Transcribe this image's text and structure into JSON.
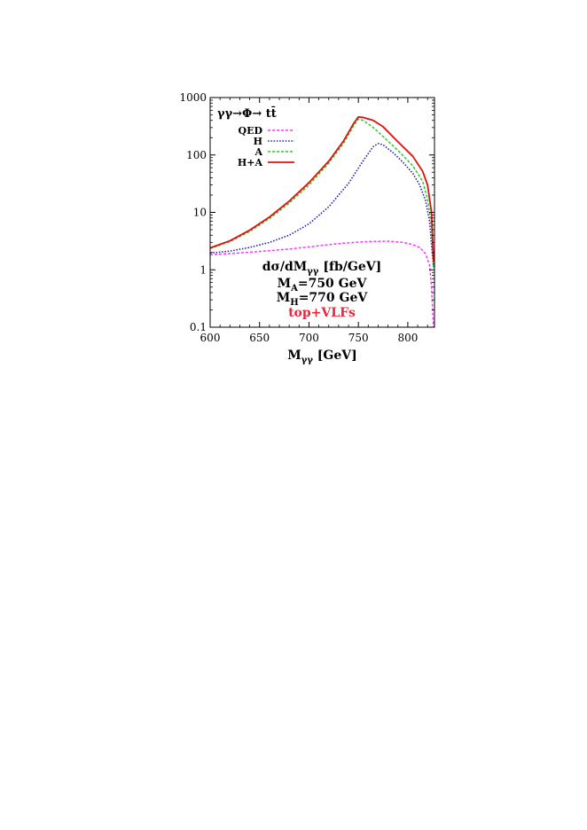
{
  "chart_data": {
    "type": "line",
    "title": "γγ→Φ→ tt̄",
    "xlabel": "M_γγ [GeV]",
    "ylabel": "",
    "xlim": [
      600,
      827
    ],
    "ylim": [
      0.1,
      1000
    ],
    "yscale": "log",
    "x_ticks": [
      "600",
      "650",
      "700",
      "750",
      "800"
    ],
    "y_ticks": [
      "0.1",
      "1",
      "10",
      "100",
      "1000"
    ],
    "legend_position": "top-left",
    "annotations": {
      "ylabel_text": "dσ/dM_γγ [fb/GeV]",
      "ma_text": "M_A=750 GeV",
      "mh_text": "M_H=770 GeV",
      "model_text": "top+VLFs",
      "model_color": "#e8283c"
    },
    "series": [
      {
        "name": "QED",
        "color": "#ff33ff",
        "dash": "dashed",
        "points": [
          [
            600,
            1.82
          ],
          [
            620,
            1.92
          ],
          [
            640,
            2.02
          ],
          [
            660,
            2.15
          ],
          [
            680,
            2.3
          ],
          [
            700,
            2.5
          ],
          [
            720,
            2.75
          ],
          [
            740,
            2.95
          ],
          [
            760,
            3.1
          ],
          [
            780,
            3.15
          ],
          [
            795,
            3.0
          ],
          [
            805,
            2.75
          ],
          [
            812,
            2.45
          ],
          [
            818,
            1.9
          ],
          [
            822,
            1.2
          ],
          [
            824,
            0.5
          ],
          [
            826,
            0.1
          ]
        ]
      },
      {
        "name": "H",
        "color": "#1f1fb0",
        "dash": "dotted",
        "points": [
          [
            600,
            1.95
          ],
          [
            620,
            2.12
          ],
          [
            640,
            2.45
          ],
          [
            660,
            3.0
          ],
          [
            680,
            4.0
          ],
          [
            700,
            6.3
          ],
          [
            720,
            12.5
          ],
          [
            740,
            32
          ],
          [
            755,
            80
          ],
          [
            765,
            140
          ],
          [
            770,
            158
          ],
          [
            775,
            150
          ],
          [
            785,
            110
          ],
          [
            795,
            75
          ],
          [
            805,
            48
          ],
          [
            812,
            30
          ],
          [
            818,
            16
          ],
          [
            822,
            7
          ],
          [
            826,
            1.1
          ]
        ]
      },
      {
        "name": "A",
        "color": "#22cc22",
        "dash": "dashed",
        "points": [
          [
            600,
            2.35
          ],
          [
            620,
            3.1
          ],
          [
            640,
            4.65
          ],
          [
            660,
            7.8
          ],
          [
            680,
            14.5
          ],
          [
            700,
            30
          ],
          [
            720,
            72
          ],
          [
            735,
            160
          ],
          [
            745,
            320
          ],
          [
            750,
            420
          ],
          [
            755,
            400
          ],
          [
            765,
            300
          ],
          [
            775,
            210
          ],
          [
            790,
            120
          ],
          [
            805,
            65
          ],
          [
            815,
            35
          ],
          [
            820,
            17
          ],
          [
            824,
            6
          ],
          [
            826,
            1.1
          ]
        ]
      },
      {
        "name": "H+A",
        "color": "#e01010",
        "dash": "solid",
        "points": [
          [
            600,
            2.4
          ],
          [
            620,
            3.2
          ],
          [
            640,
            4.9
          ],
          [
            660,
            8.3
          ],
          [
            680,
            15.7
          ],
          [
            700,
            33
          ],
          [
            720,
            78
          ],
          [
            735,
            175
          ],
          [
            745,
            350
          ],
          [
            750,
            460
          ],
          [
            755,
            450
          ],
          [
            765,
            400
          ],
          [
            775,
            310
          ],
          [
            790,
            170
          ],
          [
            805,
            95
          ],
          [
            815,
            52
          ],
          [
            820,
            30
          ],
          [
            824,
            10
          ],
          [
            826,
            1.4
          ]
        ]
      }
    ]
  }
}
